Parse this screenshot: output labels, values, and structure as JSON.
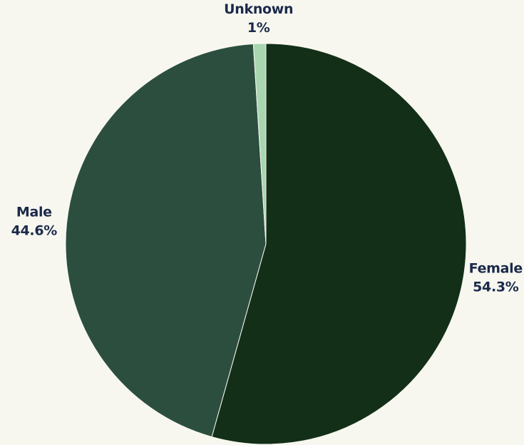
{
  "chart_data": {
    "type": "pie",
    "slices": [
      {
        "label": "Female",
        "value": 54.3,
        "value_label": "54.3%",
        "color": "#132f17"
      },
      {
        "label": "Male",
        "value": 44.6,
        "value_label": "44.6%",
        "color": "#2c4e3f"
      },
      {
        "label": "Unknown",
        "value": 1,
        "value_label": "1%",
        "color": "#a9d6b0"
      }
    ],
    "start": "12 o'clock",
    "direction": "clockwise",
    "legend": "none",
    "labels_outside": true
  },
  "colors": {
    "background": "#f7f7f0",
    "label_text": "#1b2a4a"
  }
}
